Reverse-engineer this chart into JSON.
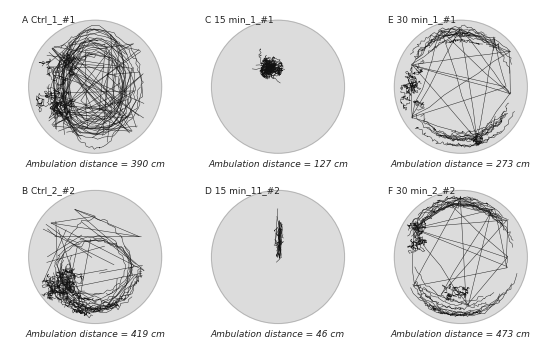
{
  "panels": [
    {
      "label": "A Ctrl_1_#1",
      "distance": "Ambulation distance = 390 cm",
      "path_type": "A",
      "seed": 42
    },
    {
      "label": "C 15 min_1_#1",
      "distance": "Ambulation distance = 127 cm",
      "path_type": "C",
      "seed": 7
    },
    {
      "label": "E 30 min_1_#1",
      "distance": "Ambulation distance = 273 cm",
      "path_type": "E",
      "seed": 15
    },
    {
      "label": "B Ctrl_2_#2",
      "distance": "Ambulation distance = 419 cm",
      "path_type": "B",
      "seed": 23
    },
    {
      "label": "D 15 min_11_#2",
      "distance": "Ambulation distance = 46 cm",
      "path_type": "D",
      "seed": 3
    },
    {
      "label": "F 30 min_2_#2",
      "distance": "Ambulation distance = 473 cm",
      "path_type": "F",
      "seed": 99
    }
  ],
  "bg_color": "#ffffff",
  "circle_color": "#dcdcdc",
  "circle_edge_color": "#b0b0b0",
  "path_color": "#111111",
  "text_color": "#222222",
  "label_fontsize": 6.5,
  "dist_fontsize": 6.5,
  "linewidth": 0.35
}
